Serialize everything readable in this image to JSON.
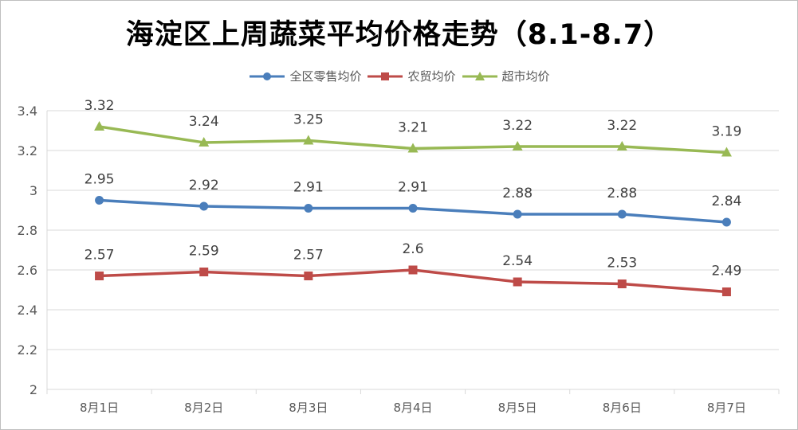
{
  "colors": {
    "retail": "#4a7ebb",
    "farmers": "#be4b48",
    "super": "#98b954",
    "grid": "#d9d9d9",
    "axis_text": "#595959"
  },
  "chart_data": {
    "type": "line",
    "title": "海淀区上周蔬菜平均价格走势（8.1-8.7）",
    "categories": [
      "8月1日",
      "8月2日",
      "8月3日",
      "8月4日",
      "8月5日",
      "8月6日",
      "8月7日"
    ],
    "ylim": [
      2,
      3.4
    ],
    "yticks": [
      "2",
      "2.2",
      "2.4",
      "2.6",
      "2.8",
      "3",
      "3.2",
      "3.4"
    ],
    "grid": true,
    "legend_position": "top",
    "series": [
      {
        "name": "全区零售均价",
        "color": "#4a7ebb",
        "marker": "circle",
        "values": [
          2.95,
          2.92,
          2.91,
          2.91,
          2.88,
          2.88,
          2.84
        ],
        "labels": [
          "2.95",
          "2.92",
          "2.91",
          "2.91",
          "2.88",
          "2.88",
          "2.84"
        ]
      },
      {
        "name": "农贸均价",
        "color": "#be4b48",
        "marker": "square",
        "values": [
          2.57,
          2.59,
          2.57,
          2.6,
          2.54,
          2.53,
          2.49
        ],
        "labels": [
          "2.57",
          "2.59",
          "2.57",
          "2.6",
          "2.54",
          "2.53",
          "2.49"
        ]
      },
      {
        "name": "超市均价",
        "color": "#98b954",
        "marker": "triangle",
        "values": [
          3.32,
          3.24,
          3.25,
          3.21,
          3.22,
          3.22,
          3.19
        ],
        "labels": [
          "3.32",
          "3.24",
          "3.25",
          "3.21",
          "3.22",
          "3.22",
          "3.19"
        ]
      }
    ]
  }
}
